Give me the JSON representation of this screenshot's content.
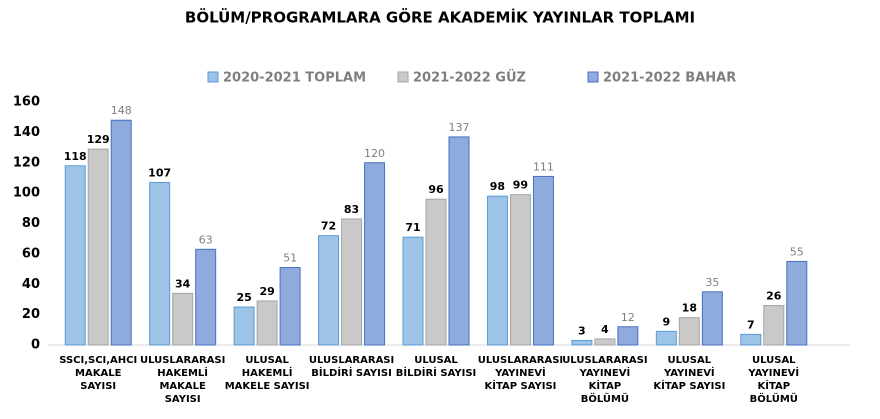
{
  "chart_data": {
    "type": "bar",
    "title": "BÖLÜM/PROGRAMLARA GÖRE AKADEMİK YAYINLAR TOPLAMI",
    "categories": [
      [
        "SSCI,SCI,AHCI",
        "MAKALE",
        "SAYISI"
      ],
      [
        "ULUSLARARASI",
        "HAKEMLİ",
        "MAKALE",
        "SAYISI"
      ],
      [
        "ULUSAL",
        "HAKEMLİ",
        "MAKELE SAYISI"
      ],
      [
        "ULUSLARARASI",
        "BİLDİRİ SAYISI"
      ],
      [
        "ULUSAL",
        "BİLDİRİ SAYISI"
      ],
      [
        "ULUSLARARASI",
        "YAYINEVİ",
        "KİTAP SAYISI"
      ],
      [
        "ULUSLARARASI",
        "YAYINEVİ",
        "KİTAP",
        "BÖLÜMÜ"
      ],
      [
        "ULUSAL",
        "YAYINEVİ",
        "KİTAP SAYISI"
      ],
      [
        "ULUSAL",
        "YAYINEVİ",
        "KİTAP",
        "BÖLÜMÜ"
      ]
    ],
    "series": [
      {
        "name": "2020-2021 TOPLAM",
        "color": "#9dc3e6",
        "values": [
          118,
          107,
          25,
          72,
          71,
          98,
          3,
          9,
          7
        ]
      },
      {
        "name": "2021-2022 GÜZ",
        "color": "#c9c9c9",
        "values": [
          129,
          34,
          29,
          83,
          96,
          99,
          4,
          18,
          26
        ]
      },
      {
        "name": "2021-2022 BAHAR",
        "color": "#8faadc",
        "values": [
          148,
          63,
          51,
          120,
          137,
          111,
          12,
          35,
          55
        ]
      }
    ],
    "ylim": [
      0,
      160
    ],
    "yticks": [
      0,
      20,
      40,
      60,
      80,
      100,
      120,
      140,
      160
    ],
    "legend": "top",
    "grid": false
  }
}
